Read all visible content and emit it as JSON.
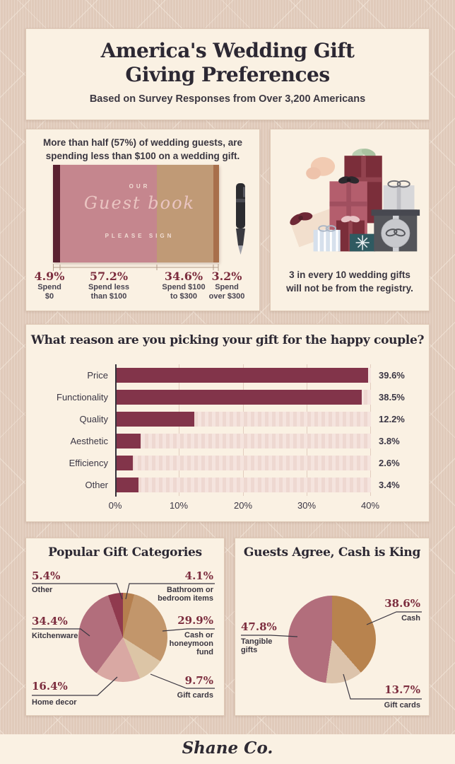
{
  "header": {
    "title_lines": [
      "America's Wedding Gift",
      "Giving Preferences"
    ],
    "subtitle": "Based on Survey Responses from Over 3,200 Americans"
  },
  "spending": {
    "heading": "More than half (57%) of wedding guests, are spending less than $100 on a wedding gift.",
    "book": {
      "label_top": "OUR",
      "label_script": "Guest book",
      "label_bottom": "PLEASE SIGN"
    }
  },
  "registry": {
    "caption": "3 in every 10 wedding gifts will not be from the registry."
  },
  "footer": {
    "brand": "Shane Co."
  },
  "colors": {
    "page_bg": "#e4cfc0",
    "panel_bg": "#faf1e3",
    "accent_maroon": "#7c2d3e",
    "bar": "#82344a",
    "ink": "#2c2833"
  },
  "chart_data": [
    {
      "id": "spend_distribution",
      "type": "bar",
      "title": "Wedding gift spending distribution",
      "categories": [
        "Spend $0",
        "Spend less than $100",
        "Spend $100 to $300",
        "Spend over $300"
      ],
      "category_lines": [
        [
          "Spend",
          "$0"
        ],
        [
          "Spend less",
          "than $100"
        ],
        [
          "Spend $100",
          "to $300"
        ],
        [
          "Spend",
          "over $300"
        ]
      ],
      "values": [
        4.9,
        57.2,
        34.6,
        3.2
      ],
      "value_labels": [
        "4.9%",
        "57.2%",
        "34.6%",
        "3.2%"
      ]
    },
    {
      "id": "reasons",
      "type": "bar",
      "title": "What reason are you picking your gift for the happy couple?",
      "categories": [
        "Price",
        "Functionality",
        "Quality",
        "Aesthetic",
        "Efficiency",
        "Other"
      ],
      "values": [
        39.6,
        38.5,
        12.2,
        3.8,
        2.6,
        3.4
      ],
      "value_labels": [
        "39.6%",
        "38.5%",
        "12.2%",
        "3.8%",
        "2.6%",
        "3.4%"
      ],
      "xlim": [
        0,
        40
      ],
      "xticks": [
        "0%",
        "10%",
        "20%",
        "30%",
        "40%"
      ],
      "xlabel": "",
      "ylabel": "",
      "bar_color": "#82344a",
      "track_color": "#f5e4de"
    },
    {
      "id": "gift_categories",
      "type": "pie",
      "title": "Popular Gift Categories",
      "slices": [
        {
          "label": "Bathroom or bedroom items",
          "label_lines": [
            "Bathroom or",
            "bedroom items"
          ],
          "value": 4.1,
          "pct": "4.1%",
          "color": "#b57f4e"
        },
        {
          "label": "Cash or honeymoon fund",
          "label_lines": [
            "Cash or",
            "honeymoon",
            "fund"
          ],
          "value": 29.9,
          "pct": "29.9%",
          "color": "#c2966b"
        },
        {
          "label": "Gift cards",
          "label_lines": [
            "Gift cards"
          ],
          "value": 9.7,
          "pct": "9.7%",
          "color": "#dcc5a6"
        },
        {
          "label": "Home decor",
          "label_lines": [
            "Home decor"
          ],
          "value": 16.4,
          "pct": "16.4%",
          "color": "#d9a8a3"
        },
        {
          "label": "Kitchenware",
          "label_lines": [
            "Kitchenware"
          ],
          "value": 34.4,
          "pct": "34.4%",
          "color": "#b26e7c"
        },
        {
          "label": "Other",
          "label_lines": [
            "Other"
          ],
          "value": 5.4,
          "pct": "5.4%",
          "color": "#903a4e"
        }
      ]
    },
    {
      "id": "cash_is_king",
      "type": "pie",
      "title": "Guests Agree, Cash is King",
      "slices": [
        {
          "label": "Cash",
          "label_lines": [
            "Cash"
          ],
          "value": 38.6,
          "pct": "38.6%",
          "color": "#b8834e"
        },
        {
          "label": "Gift cards",
          "label_lines": [
            "Gift cards"
          ],
          "value": 13.7,
          "pct": "13.7%",
          "color": "#dcc3ab"
        },
        {
          "label": "Tangible gifts",
          "label_lines": [
            "Tangible",
            "gifts"
          ],
          "value": 47.8,
          "pct": "47.8%",
          "color": "#b26e7c"
        }
      ]
    }
  ]
}
